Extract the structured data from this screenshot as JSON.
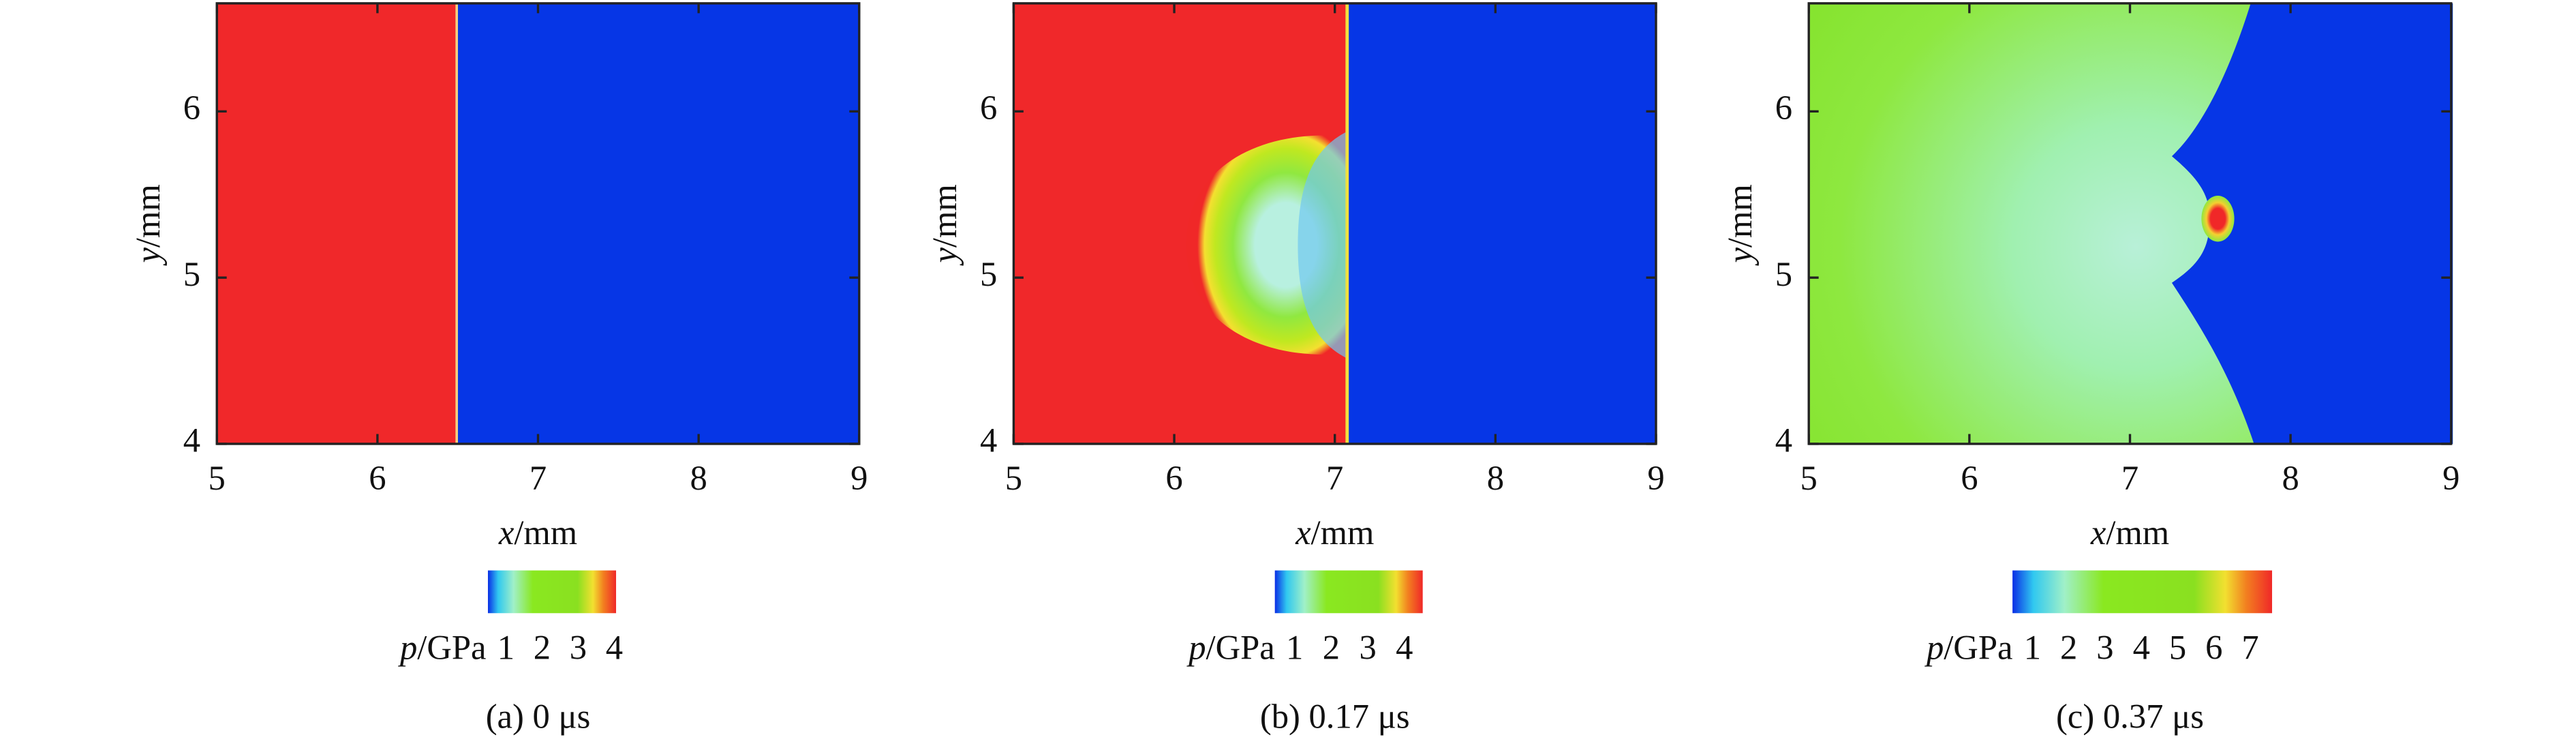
{
  "chart_data": [
    {
      "type": "heatmap",
      "caption": "(a) 0 μs",
      "xlabel": [
        "x",
        "/mm"
      ],
      "ylabel": [
        "y",
        "/mm"
      ],
      "xlim": [
        5,
        9
      ],
      "xticks": [
        5,
        6,
        7,
        8,
        9
      ],
      "ylim": [
        4,
        6.65
      ],
      "yticks": [
        4,
        5,
        6
      ],
      "colorbar": {
        "label": [
          "p",
          "/GPa"
        ],
        "lim": [
          0.5,
          4.05
        ],
        "ticks": [
          1,
          2,
          3,
          4
        ]
      }
    },
    {
      "type": "heatmap",
      "caption": "(b) 0.17 μs",
      "xlabel": [
        "x",
        "/mm"
      ],
      "ylabel": [
        "y",
        "/mm"
      ],
      "xlim": [
        5,
        9
      ],
      "xticks": [
        5,
        6,
        7,
        8,
        9
      ],
      "ylim": [
        4,
        6.65
      ],
      "yticks": [
        4,
        5,
        6
      ],
      "colorbar": {
        "label": [
          "p",
          "/GPa"
        ],
        "lim": [
          0.46,
          4.5
        ],
        "ticks": [
          1,
          2,
          3,
          4
        ]
      }
    },
    {
      "type": "heatmap",
      "caption": "(c) 0.37 μs",
      "xlabel": [
        "x",
        "/mm"
      ],
      "ylabel": [
        "y",
        "/mm"
      ],
      "xlim": [
        5,
        9
      ],
      "xticks": [
        5,
        6,
        7,
        8,
        9
      ],
      "ylim": [
        4,
        6.65
      ],
      "yticks": [
        4,
        5,
        6
      ],
      "colorbar": {
        "label": [
          "p",
          "/GPa"
        ],
        "lim": [
          0.45,
          7.6
        ],
        "ticks": [
          1,
          2,
          3,
          4,
          5,
          6,
          7
        ]
      }
    }
  ]
}
